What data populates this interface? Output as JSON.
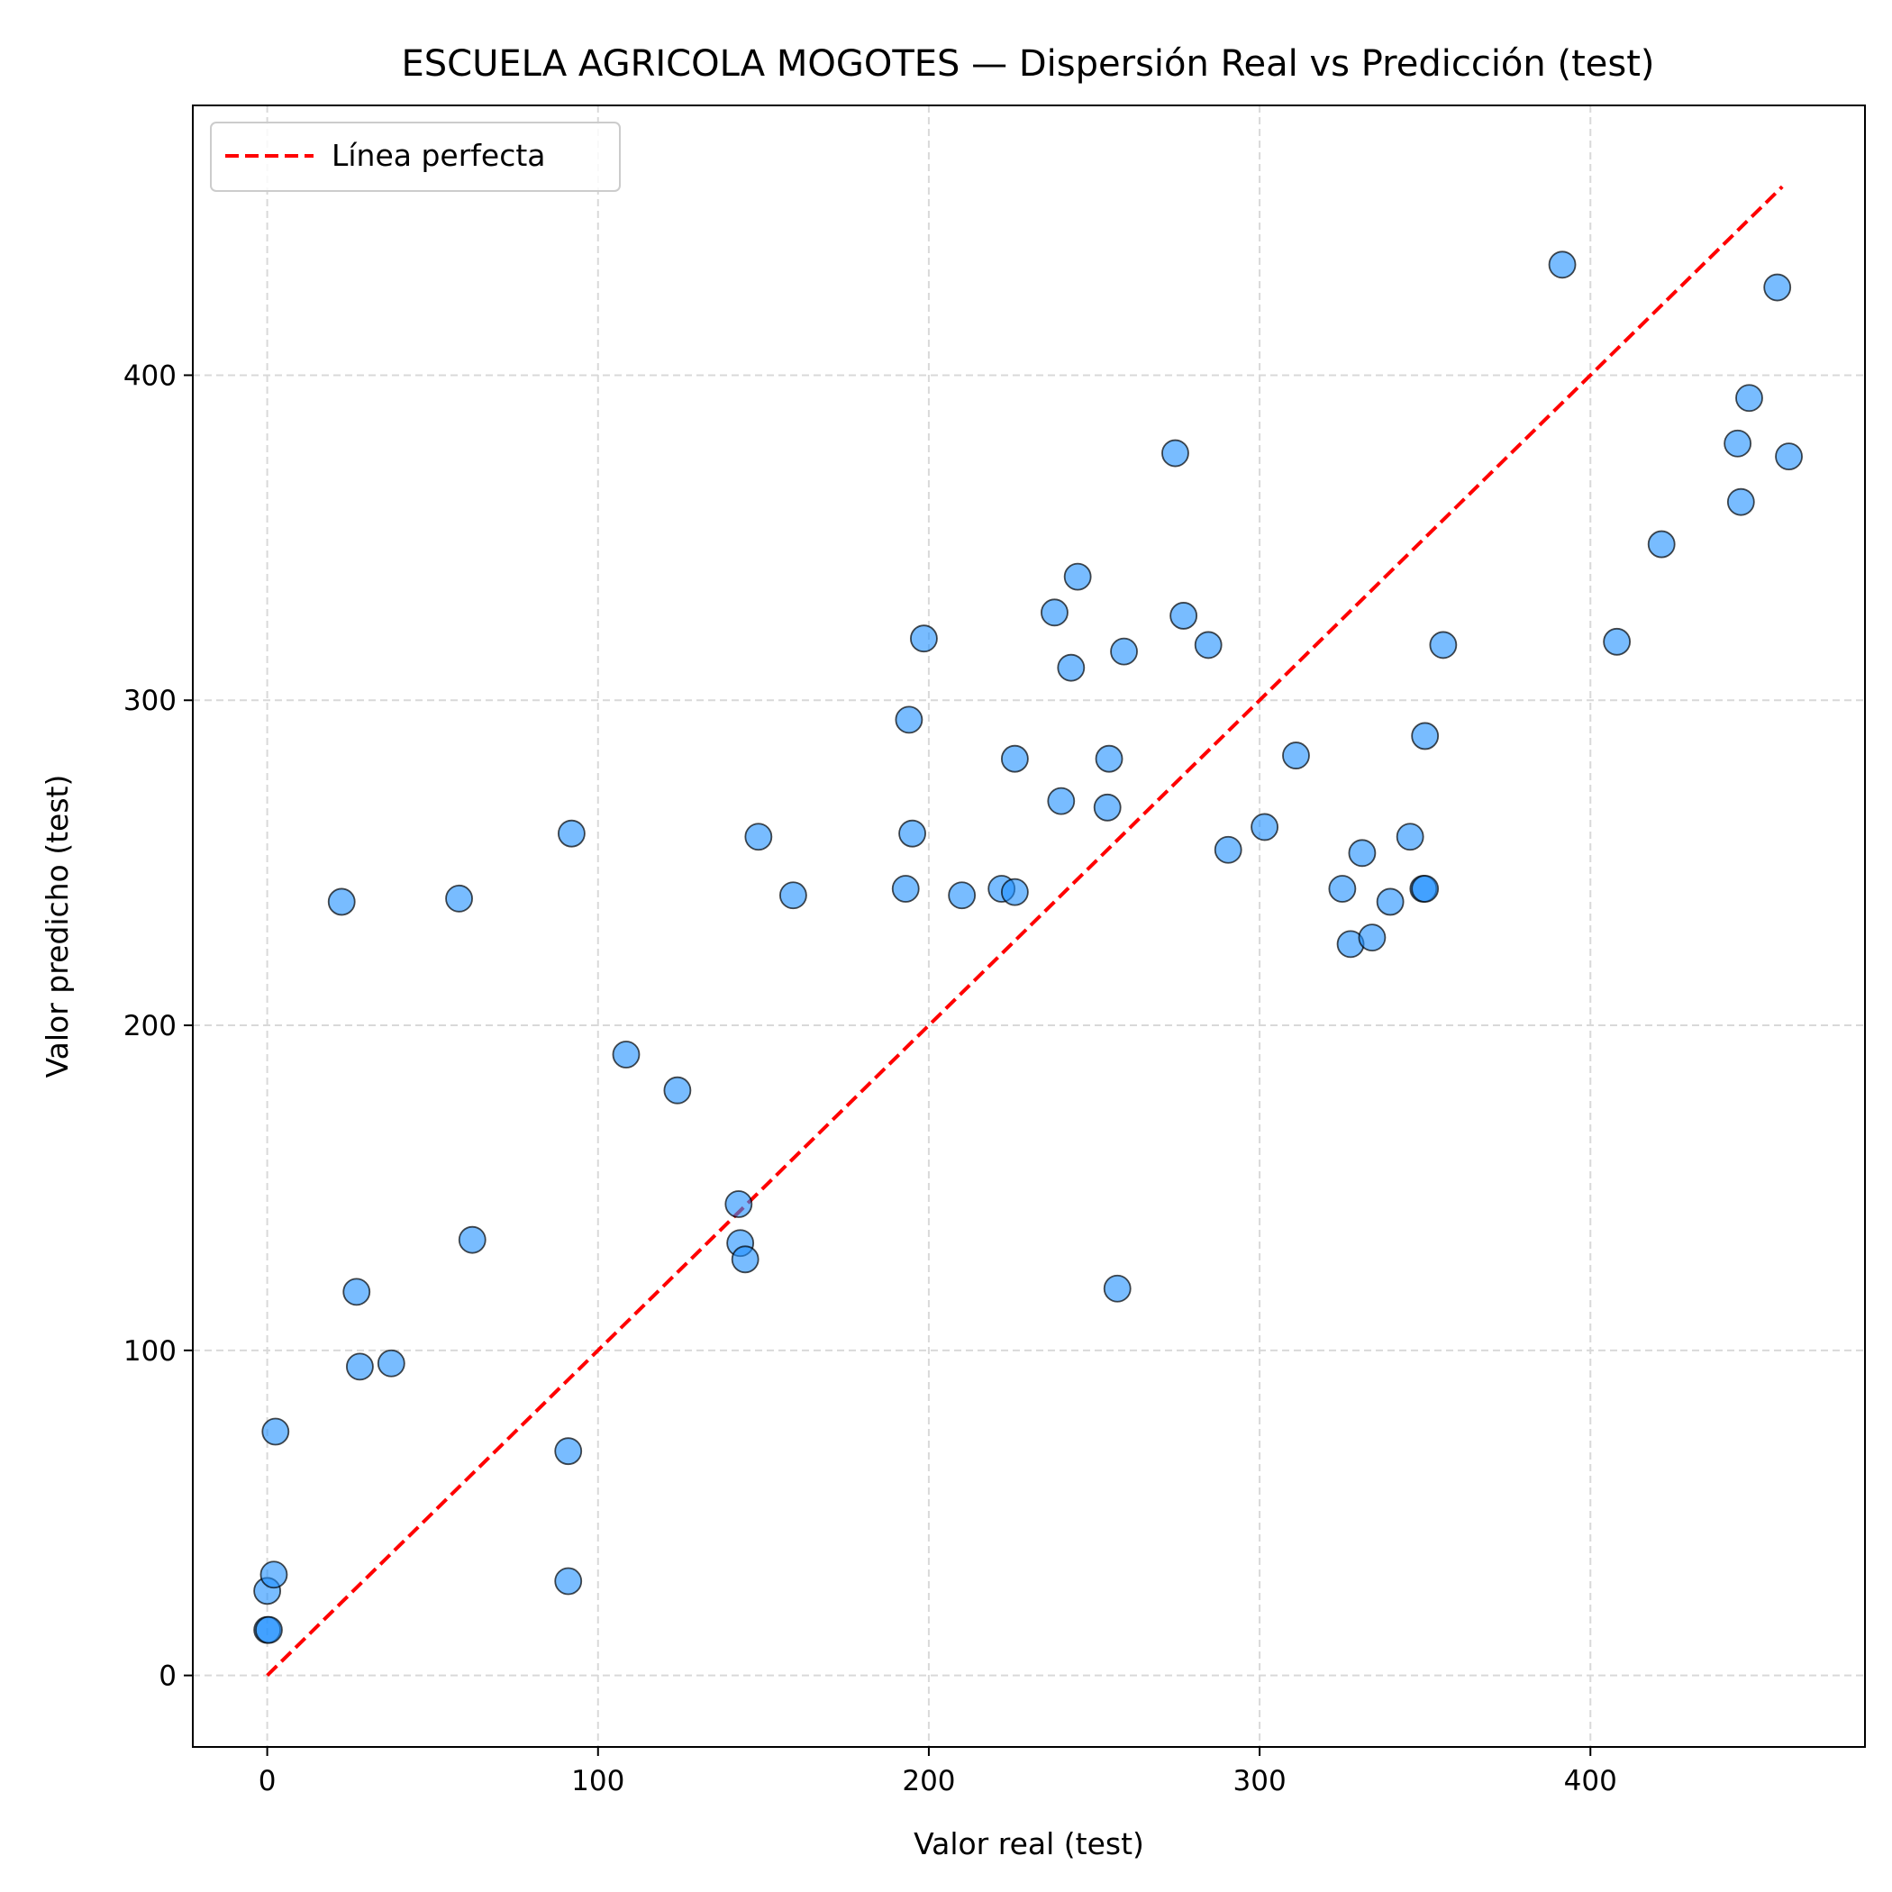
{
  "chart_data": {
    "type": "scatter",
    "title": "ESCUELA AGRICOLA MOGOTES — Dispersión Real vs Predicción (test)",
    "xlabel": "Valor real (test)",
    "ylabel": "Valor predicho (test)",
    "xlim": [
      -22.5,
      483
    ],
    "ylim": [
      -22,
      483
    ],
    "x_ticks": [
      0,
      100,
      200,
      300,
      400
    ],
    "y_ticks": [
      0,
      100,
      200,
      300,
      400
    ],
    "x_tick_labels": [
      "0",
      "100",
      "200",
      "300",
      "400"
    ],
    "y_tick_labels": [
      "0",
      "100",
      "200",
      "300",
      "400"
    ],
    "grid": true,
    "legend_position": "top-left",
    "legend": [
      {
        "label": "Línea perfecta",
        "style": "dashed",
        "color": "#ff0000"
      }
    ],
    "reference_line": {
      "name": "Línea perfecta",
      "x": [
        0,
        458
      ],
      "y": [
        0,
        458
      ],
      "color": "#ff0000",
      "style": "dashed"
    },
    "point_color": "#1e90ff",
    "point_edge_color": "#000000",
    "series": [
      {
        "points": [
          [
            0,
            14
          ],
          [
            0.5,
            14
          ],
          [
            0,
            26
          ],
          [
            2,
            31
          ],
          [
            2.5,
            75
          ],
          [
            22.5,
            238
          ],
          [
            27,
            118
          ],
          [
            28,
            95
          ],
          [
            37.5,
            96
          ],
          [
            58,
            239
          ],
          [
            62,
            134
          ],
          [
            91,
            69
          ],
          [
            91,
            29
          ],
          [
            92,
            259
          ],
          [
            108.5,
            191
          ],
          [
            124,
            180
          ],
          [
            142.5,
            145
          ],
          [
            143,
            133
          ],
          [
            144.5,
            128
          ],
          [
            148.5,
            258
          ],
          [
            159,
            240
          ],
          [
            193,
            242
          ],
          [
            194,
            294
          ],
          [
            195,
            259
          ],
          [
            198.5,
            319
          ],
          [
            210,
            240
          ],
          [
            222,
            242
          ],
          [
            226,
            241
          ],
          [
            226,
            282
          ],
          [
            238,
            327
          ],
          [
            240,
            269
          ],
          [
            243,
            310
          ],
          [
            245,
            338
          ],
          [
            254,
            267
          ],
          [
            254.5,
            282
          ],
          [
            257,
            119
          ],
          [
            259,
            315
          ],
          [
            274.5,
            376
          ],
          [
            277,
            326
          ],
          [
            284.5,
            317
          ],
          [
            290.5,
            254
          ],
          [
            301.5,
            261
          ],
          [
            311,
            283
          ],
          [
            325,
            242
          ],
          [
            327.5,
            225
          ],
          [
            331,
            253
          ],
          [
            334,
            227
          ],
          [
            339.5,
            238
          ],
          [
            345.5,
            258
          ],
          [
            349.5,
            242
          ],
          [
            350,
            242
          ],
          [
            350,
            289
          ],
          [
            355.5,
            317
          ],
          [
            391.5,
            434
          ],
          [
            408,
            318
          ],
          [
            421.5,
            348
          ],
          [
            444.5,
            379
          ],
          [
            445.5,
            361
          ],
          [
            448,
            393
          ],
          [
            456.5,
            427
          ],
          [
            460,
            375
          ]
        ]
      }
    ]
  }
}
